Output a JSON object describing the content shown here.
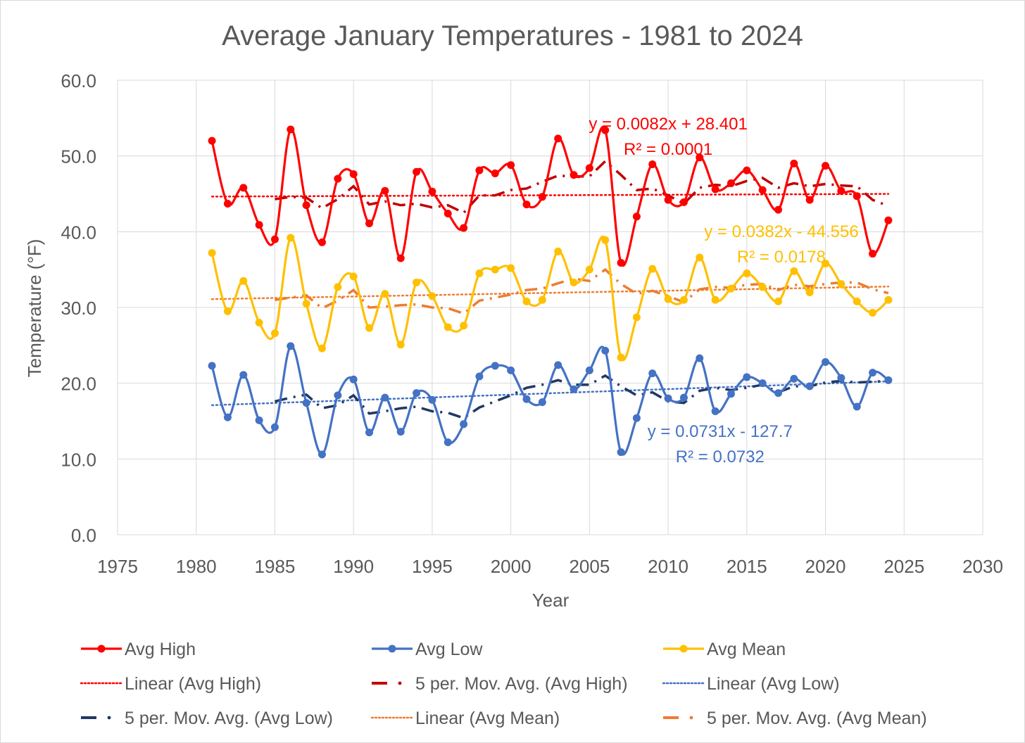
{
  "chart_data": {
    "type": "line",
    "title": "Average January Temperatures - 1981 to 2024",
    "xlabel": "Year",
    "ylabel": "Temperature (°F)",
    "xlim": [
      1975,
      2030
    ],
    "ylim": [
      0,
      60
    ],
    "x_ticks": [
      1975,
      1980,
      1985,
      1990,
      1995,
      2000,
      2005,
      2010,
      2015,
      2020,
      2025,
      2030
    ],
    "y_ticks": [
      0,
      10,
      20,
      30,
      40,
      50,
      60
    ],
    "x_tick_labels": [
      "1975",
      "1980",
      "1985",
      "1990",
      "1995",
      "2000",
      "2005",
      "2010",
      "2015",
      "2020",
      "2025",
      "2030"
    ],
    "y_tick_labels": [
      "0.0",
      "10.0",
      "20.0",
      "30.0",
      "40.0",
      "50.0",
      "60.0"
    ],
    "grid": true,
    "legend_position": "bottom",
    "x": [
      1981,
      1982,
      1983,
      1984,
      1985,
      1986,
      1987,
      1988,
      1989,
      1990,
      1991,
      1992,
      1993,
      1994,
      1995,
      1996,
      1997,
      1998,
      1999,
      2000,
      2001,
      2002,
      2003,
      2004,
      2005,
      2006,
      2007,
      2008,
      2009,
      2010,
      2011,
      2012,
      2013,
      2014,
      2015,
      2016,
      2017,
      2018,
      2019,
      2020,
      2021,
      2022,
      2023,
      2024
    ],
    "series": [
      {
        "name": "Avg High",
        "color": "#ff0000",
        "values": [
          52.0,
          43.7,
          45.8,
          40.9,
          39.0,
          53.5,
          43.5,
          38.6,
          47.0,
          47.6,
          41.1,
          45.4,
          36.5,
          47.9,
          45.3,
          42.4,
          40.5,
          48.1,
          47.7,
          48.8,
          43.6,
          44.6,
          52.3,
          47.5,
          48.4,
          53.4,
          35.9,
          42.0,
          48.9,
          44.2,
          43.9,
          49.8,
          45.6,
          46.4,
          48.1,
          45.5,
          42.9,
          49.0,
          44.2,
          48.7,
          45.4,
          44.7,
          37.1,
          41.5
        ]
      },
      {
        "name": "Avg Low",
        "color": "#4472c4",
        "values": [
          22.3,
          15.5,
          21.1,
          15.1,
          14.2,
          24.9,
          17.4,
          10.6,
          18.4,
          20.5,
          13.5,
          18.1,
          13.6,
          18.7,
          17.8,
          12.2,
          14.6,
          20.9,
          22.3,
          21.7,
          17.9,
          17.5,
          22.4,
          19.2,
          21.7,
          24.3,
          10.9,
          15.4,
          21.3,
          18.0,
          18.1,
          23.3,
          16.3,
          18.6,
          20.8,
          20.0,
          18.7,
          20.6,
          19.6,
          22.8,
          20.7,
          16.9,
          21.4,
          20.4
        ]
      },
      {
        "name": "Avg Mean",
        "color": "#ffc000",
        "values": [
          37.2,
          29.5,
          33.5,
          28.0,
          26.6,
          39.2,
          30.5,
          24.6,
          32.7,
          34.1,
          27.3,
          31.8,
          25.1,
          33.3,
          31.5,
          27.4,
          27.6,
          34.5,
          35.0,
          35.2,
          30.8,
          31.0,
          37.4,
          33.3,
          35.0,
          38.9,
          23.4,
          28.7,
          35.1,
          31.1,
          31.0,
          36.6,
          31.0,
          32.5,
          34.5,
          32.7,
          30.8,
          34.8,
          32.0,
          35.8,
          33.1,
          30.8,
          29.3,
          31.0
        ]
      },
      {
        "name": "Linear (Avg High)",
        "color": "#ff0000",
        "kind": "trend-linear",
        "x": [
          1981,
          2024
        ],
        "values": [
          44.64,
          44.99
        ]
      },
      {
        "name": "5 per. Mov. Avg. (Avg High)",
        "color": "#c00000",
        "kind": "moving-average",
        "x": [
          1985,
          1986,
          1987,
          1988,
          1989,
          1990,
          1991,
          1992,
          1993,
          1994,
          1995,
          1996,
          1997,
          1998,
          1999,
          2000,
          2001,
          2002,
          2003,
          2004,
          2005,
          2006,
          2007,
          2008,
          2009,
          2010,
          2011,
          2012,
          2013,
          2014,
          2015,
          2016,
          2017,
          2018,
          2019,
          2020,
          2021,
          2022,
          2023,
          2024
        ],
        "values": [
          44.3,
          44.6,
          44.5,
          43.1,
          44.3,
          46.0,
          43.6,
          44.0,
          43.5,
          43.7,
          43.2,
          43.5,
          42.5,
          44.8,
          44.8,
          45.5,
          45.7,
          46.6,
          47.4,
          47.3,
          47.3,
          49.3,
          47.5,
          45.5,
          45.7,
          44.8,
          43.7,
          45.8,
          46.2,
          46.0,
          46.7,
          47.1,
          45.8,
          46.4,
          46.0,
          46.3,
          46.1,
          46.0,
          44.2,
          43.4
        ]
      },
      {
        "name": "Linear (Avg Low)",
        "color": "#4472c4",
        "kind": "trend-linear",
        "x": [
          1981,
          2024
        ],
        "values": [
          17.1,
          20.25
        ]
      },
      {
        "name": "5 per. Mov. Avg. (Avg Low)",
        "color": "#203864",
        "kind": "moving-average",
        "x": [
          1985,
          1986,
          1987,
          1988,
          1989,
          1990,
          1991,
          1992,
          1993,
          1994,
          1995,
          1996,
          1997,
          1998,
          1999,
          2000,
          2001,
          2002,
          2003,
          2004,
          2005,
          2006,
          2007,
          2008,
          2009,
          2010,
          2011,
          2012,
          2013,
          2014,
          2015,
          2016,
          2017,
          2018,
          2019,
          2020,
          2021,
          2022,
          2023,
          2024
        ],
        "values": [
          17.6,
          18.1,
          18.5,
          16.7,
          17.1,
          18.4,
          16.0,
          16.3,
          16.7,
          16.9,
          16.3,
          16.1,
          15.4,
          16.8,
          17.6,
          18.4,
          19.4,
          19.8,
          20.4,
          19.8,
          19.8,
          21.0,
          19.6,
          18.4,
          18.8,
          17.6,
          17.4,
          19.0,
          19.4,
          19.1,
          19.4,
          19.8,
          18.8,
          19.6,
          19.6,
          20.1,
          20.3,
          20.1,
          20.2,
          20.3
        ]
      },
      {
        "name": "Linear (Avg Mean)",
        "color": "#ed7d31",
        "kind": "trend-linear",
        "x": [
          1981,
          2024
        ],
        "values": [
          31.1,
          32.76
        ]
      },
      {
        "name": "5 per. Mov. Avg. (Avg Mean)",
        "color": "#ed7d31",
        "kind": "moving-average",
        "x": [
          1985,
          1986,
          1987,
          1988,
          1989,
          1990,
          1991,
          1992,
          1993,
          1994,
          1995,
          1996,
          1997,
          1998,
          1999,
          2000,
          2001,
          2002,
          2003,
          2004,
          2005,
          2006,
          2007,
          2008,
          2009,
          2010,
          2011,
          2012,
          2013,
          2014,
          2015,
          2016,
          2017,
          2018,
          2019,
          2020,
          2021,
          2022,
          2023,
          2024
        ],
        "values": [
          31.0,
          31.3,
          31.6,
          29.9,
          30.9,
          32.3,
          30.0,
          30.1,
          30.3,
          30.4,
          30.0,
          29.9,
          29.2,
          30.9,
          31.3,
          31.7,
          32.3,
          32.5,
          33.2,
          33.8,
          33.5,
          35.0,
          33.1,
          31.8,
          32.2,
          31.5,
          30.7,
          32.4,
          32.7,
          32.6,
          33.0,
          33.1,
          32.3,
          33.0,
          32.8,
          33.1,
          33.3,
          33.3,
          32.4,
          31.9
        ]
      }
    ],
    "annotations": [
      {
        "series": "Avg High",
        "equation": "y = 0.0082x + 28.401",
        "r2": "R² = 0.0001",
        "color": "#ff0000",
        "at_x": 2010,
        "at_y": 53.5
      },
      {
        "series": "Avg Mean",
        "equation": "y = 0.0382x - 44.556",
        "r2": "R² = 0.0178",
        "color": "#ffc000",
        "at_x": 2017.2,
        "at_y": 39.3
      },
      {
        "series": "Avg Low",
        "equation": "y = 0.0731x - 127.7",
        "r2": "R² = 0.0732",
        "color": "#4472c4",
        "at_x": 2013.3,
        "at_y": 12.9
      }
    ],
    "legend": [
      {
        "label": "Avg High",
        "style": "line-marker",
        "color": "#ff0000"
      },
      {
        "label": "Avg Low",
        "style": "line-marker",
        "color": "#4472c4"
      },
      {
        "label": "Avg Mean",
        "style": "line-marker",
        "color": "#ffc000"
      },
      {
        "label": "Linear (Avg High)",
        "style": "dotted",
        "color": "#ff0000"
      },
      {
        "label": "5 per. Mov. Avg. (Avg High)",
        "style": "dash-dot",
        "color": "#c00000"
      },
      {
        "label": "Linear (Avg Low)",
        "style": "dotted",
        "color": "#4472c4"
      },
      {
        "label": "5 per. Mov. Avg. (Avg Low)",
        "style": "dash-dot",
        "color": "#203864"
      },
      {
        "label": "Linear (Avg Mean)",
        "style": "dotted",
        "color": "#ed7d31"
      },
      {
        "label": "5 per. Mov. Avg. (Avg Mean)",
        "style": "dash-dot",
        "color": "#ed7d31"
      }
    ]
  }
}
